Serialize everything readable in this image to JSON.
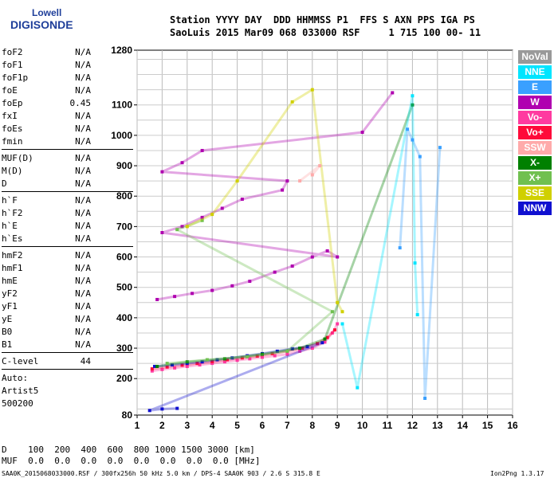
{
  "logo": {
    "line1": "Lowell",
    "line2": "DIGISONDE"
  },
  "header": {
    "row1": "Station YYYY DAY  DDD HHMMSS P1  FFS S AXN PPS IGA PS",
    "row2": "SaoLuis 2015 Mar09 068 033000 RSF     1 715 100 00- 11"
  },
  "params": {
    "group1": [
      {
        "label": "foF2",
        "value": "N/A"
      },
      {
        "label": "foF1",
        "value": "N/A"
      },
      {
        "label": "foF1p",
        "value": "N/A"
      },
      {
        "label": "foE",
        "value": "N/A"
      },
      {
        "label": "foEp",
        "value": "0.45"
      },
      {
        "label": "fxI",
        "value": "N/A"
      },
      {
        "label": "foEs",
        "value": "N/A"
      },
      {
        "label": "fmin",
        "value": "N/A"
      }
    ],
    "group2": [
      {
        "label": "MUF(D)",
        "value": "N/A"
      },
      {
        "label": "M(D)",
        "value": "N/A"
      },
      {
        "label": "D",
        "value": "N/A"
      }
    ],
    "group3": [
      {
        "label": "h`F",
        "value": "N/A"
      },
      {
        "label": "h`F2",
        "value": "N/A"
      },
      {
        "label": "h`E",
        "value": "N/A"
      },
      {
        "label": "h`Es",
        "value": "N/A"
      }
    ],
    "group4": [
      {
        "label": "hmF2",
        "value": "N/A"
      },
      {
        "label": "hmF1",
        "value": "N/A"
      },
      {
        "label": "hmE",
        "value": "N/A"
      },
      {
        "label": "yF2",
        "value": "N/A"
      },
      {
        "label": "yF1",
        "value": "N/A"
      },
      {
        "label": "yE",
        "value": "N/A"
      },
      {
        "label": "B0",
        "value": "N/A"
      },
      {
        "label": "B1",
        "value": "N/A"
      }
    ],
    "clevel": {
      "label": "C-level",
      "value": "44"
    },
    "auto": [
      "Auto:",
      "Artist5",
      "500200"
    ]
  },
  "legend": [
    {
      "label": "NoVal",
      "color": "#999999"
    },
    {
      "label": "NNE",
      "color": "#00e5ff"
    },
    {
      "label": "E",
      "color": "#3aa0ff"
    },
    {
      "label": "W",
      "color": "#b000b0"
    },
    {
      "label": "Vo-",
      "color": "#ff3aa0"
    },
    {
      "label": "Vo+",
      "color": "#ff0a3a"
    },
    {
      "label": "SSW",
      "color": "#ffaaaa"
    },
    {
      "label": "X-",
      "color": "#008000"
    },
    {
      "label": "X+",
      "color": "#70c050"
    },
    {
      "label": "SSE",
      "color": "#d0d000"
    },
    {
      "label": "NNW",
      "color": "#1010d0"
    }
  ],
  "bottom": {
    "drow": "D    100  200  400  600  800 1000 1500 3000 [km]",
    "mufrow": "MUF  0.0  0.0  0.0  0.0  0.0  0.0  0.0  0.0 [MHz]",
    "footer_left": "SAA0K_2015068033000.RSF / 300fx256h 50 kHz 5.0 km / DPS-4 SAA0K 903 / 2.6 S 315.8 E",
    "footer_right": "Ion2Png 1.3.17"
  },
  "chart_data": {
    "type": "scatter",
    "xlim": [
      1,
      16
    ],
    "ylim": [
      80,
      1280
    ],
    "x_ticks": [
      1,
      2,
      3,
      4,
      5,
      6,
      7,
      8,
      9,
      10,
      11,
      12,
      13,
      14,
      15,
      16
    ],
    "y_ticks": [
      80,
      200,
      300,
      400,
      500,
      600,
      700,
      800,
      900,
      1000,
      1100,
      1280
    ],
    "grid": true,
    "legend_position": "right",
    "traces": [
      {
        "name": "Vo-",
        "color": "#ff3aa0",
        "points": [
          [
            1.6,
            225
          ],
          [
            2.0,
            230
          ],
          [
            2.5,
            235
          ],
          [
            3.0,
            240
          ],
          [
            3.5,
            245
          ],
          [
            4.0,
            250
          ],
          [
            4.5,
            255
          ],
          [
            5.0,
            260
          ],
          [
            5.5,
            265
          ],
          [
            6.0,
            270
          ],
          [
            6.5,
            275
          ],
          [
            7.0,
            280
          ],
          [
            7.5,
            290
          ],
          [
            8.0,
            300
          ],
          [
            8.5,
            320
          ],
          [
            8.8,
            350
          ],
          [
            9.0,
            380
          ]
        ]
      },
      {
        "name": "Vo+",
        "color": "#ff0a3a",
        "points": [
          [
            1.6,
            232
          ],
          [
            2.2,
            238
          ],
          [
            2.8,
            244
          ],
          [
            3.4,
            250
          ],
          [
            4.0,
            256
          ],
          [
            4.6,
            262
          ],
          [
            5.2,
            268
          ],
          [
            5.8,
            274
          ],
          [
            6.4,
            282
          ],
          [
            7.0,
            290
          ],
          [
            7.6,
            300
          ],
          [
            8.2,
            315
          ],
          [
            8.6,
            335
          ],
          [
            8.9,
            360
          ]
        ]
      },
      {
        "name": "NNW",
        "color": "#1010d0",
        "points": [
          [
            1.7,
            240
          ],
          [
            2.4,
            245
          ],
          [
            3.0,
            250
          ],
          [
            3.6,
            255
          ],
          [
            4.2,
            262
          ],
          [
            4.8,
            268
          ],
          [
            5.4,
            275
          ],
          [
            6.0,
            282
          ],
          [
            6.6,
            290
          ],
          [
            7.2,
            298
          ],
          [
            7.8,
            305
          ],
          [
            8.4,
            318
          ],
          [
            1.5,
            95
          ],
          [
            2.0,
            100
          ],
          [
            2.6,
            102
          ]
        ]
      },
      {
        "name": "W",
        "color": "#b000b0",
        "points": [
          [
            1.8,
            460
          ],
          [
            2.5,
            470
          ],
          [
            3.2,
            480
          ],
          [
            4.0,
            490
          ],
          [
            4.8,
            505
          ],
          [
            5.5,
            520
          ],
          [
            6.5,
            550
          ],
          [
            7.2,
            570
          ],
          [
            8.0,
            600
          ],
          [
            8.6,
            620
          ],
          [
            9.0,
            600
          ],
          [
            2.0,
            680
          ],
          [
            2.8,
            700
          ],
          [
            3.6,
            730
          ],
          [
            4.4,
            760
          ],
          [
            5.2,
            790
          ],
          [
            6.8,
            820
          ],
          [
            7.0,
            850
          ],
          [
            2.0,
            880
          ],
          [
            2.8,
            910
          ],
          [
            3.6,
            950
          ],
          [
            10.0,
            1010
          ],
          [
            11.2,
            1140
          ]
        ]
      },
      {
        "name": "X-",
        "color": "#008000",
        "points": [
          [
            1.8,
            240
          ],
          [
            3.0,
            255
          ],
          [
            4.5,
            265
          ],
          [
            6.0,
            280
          ],
          [
            7.5,
            300
          ],
          [
            8.5,
            330
          ],
          [
            12.0,
            1100
          ]
        ]
      },
      {
        "name": "X+",
        "color": "#70c050",
        "points": [
          [
            2.2,
            250
          ],
          [
            3.8,
            262
          ],
          [
            5.4,
            272
          ],
          [
            7.0,
            290
          ],
          [
            8.8,
            420
          ],
          [
            2.6,
            690
          ],
          [
            3.6,
            720
          ]
        ]
      },
      {
        "name": "SSE",
        "color": "#d0d000",
        "points": [
          [
            3.0,
            700
          ],
          [
            4.0,
            740
          ],
          [
            5.0,
            850
          ],
          [
            7.2,
            1110
          ],
          [
            8.0,
            1150
          ],
          [
            9.0,
            450
          ],
          [
            9.2,
            420
          ]
        ]
      },
      {
        "name": "NNE",
        "color": "#00e5ff",
        "points": [
          [
            9.2,
            380
          ],
          [
            9.8,
            170
          ],
          [
            12.0,
            1130
          ],
          [
            12.1,
            580
          ],
          [
            12.2,
            410
          ]
        ]
      },
      {
        "name": "E",
        "color": "#3aa0ff",
        "points": [
          [
            11.5,
            630
          ],
          [
            11.8,
            1020
          ],
          [
            12.0,
            985
          ],
          [
            12.3,
            930
          ],
          [
            12.5,
            135
          ],
          [
            13.1,
            960
          ]
        ]
      },
      {
        "name": "SSW",
        "color": "#ffaaaa",
        "points": [
          [
            8.0,
            870
          ],
          [
            8.3,
            900
          ],
          [
            7.5,
            850
          ]
        ]
      }
    ]
  }
}
